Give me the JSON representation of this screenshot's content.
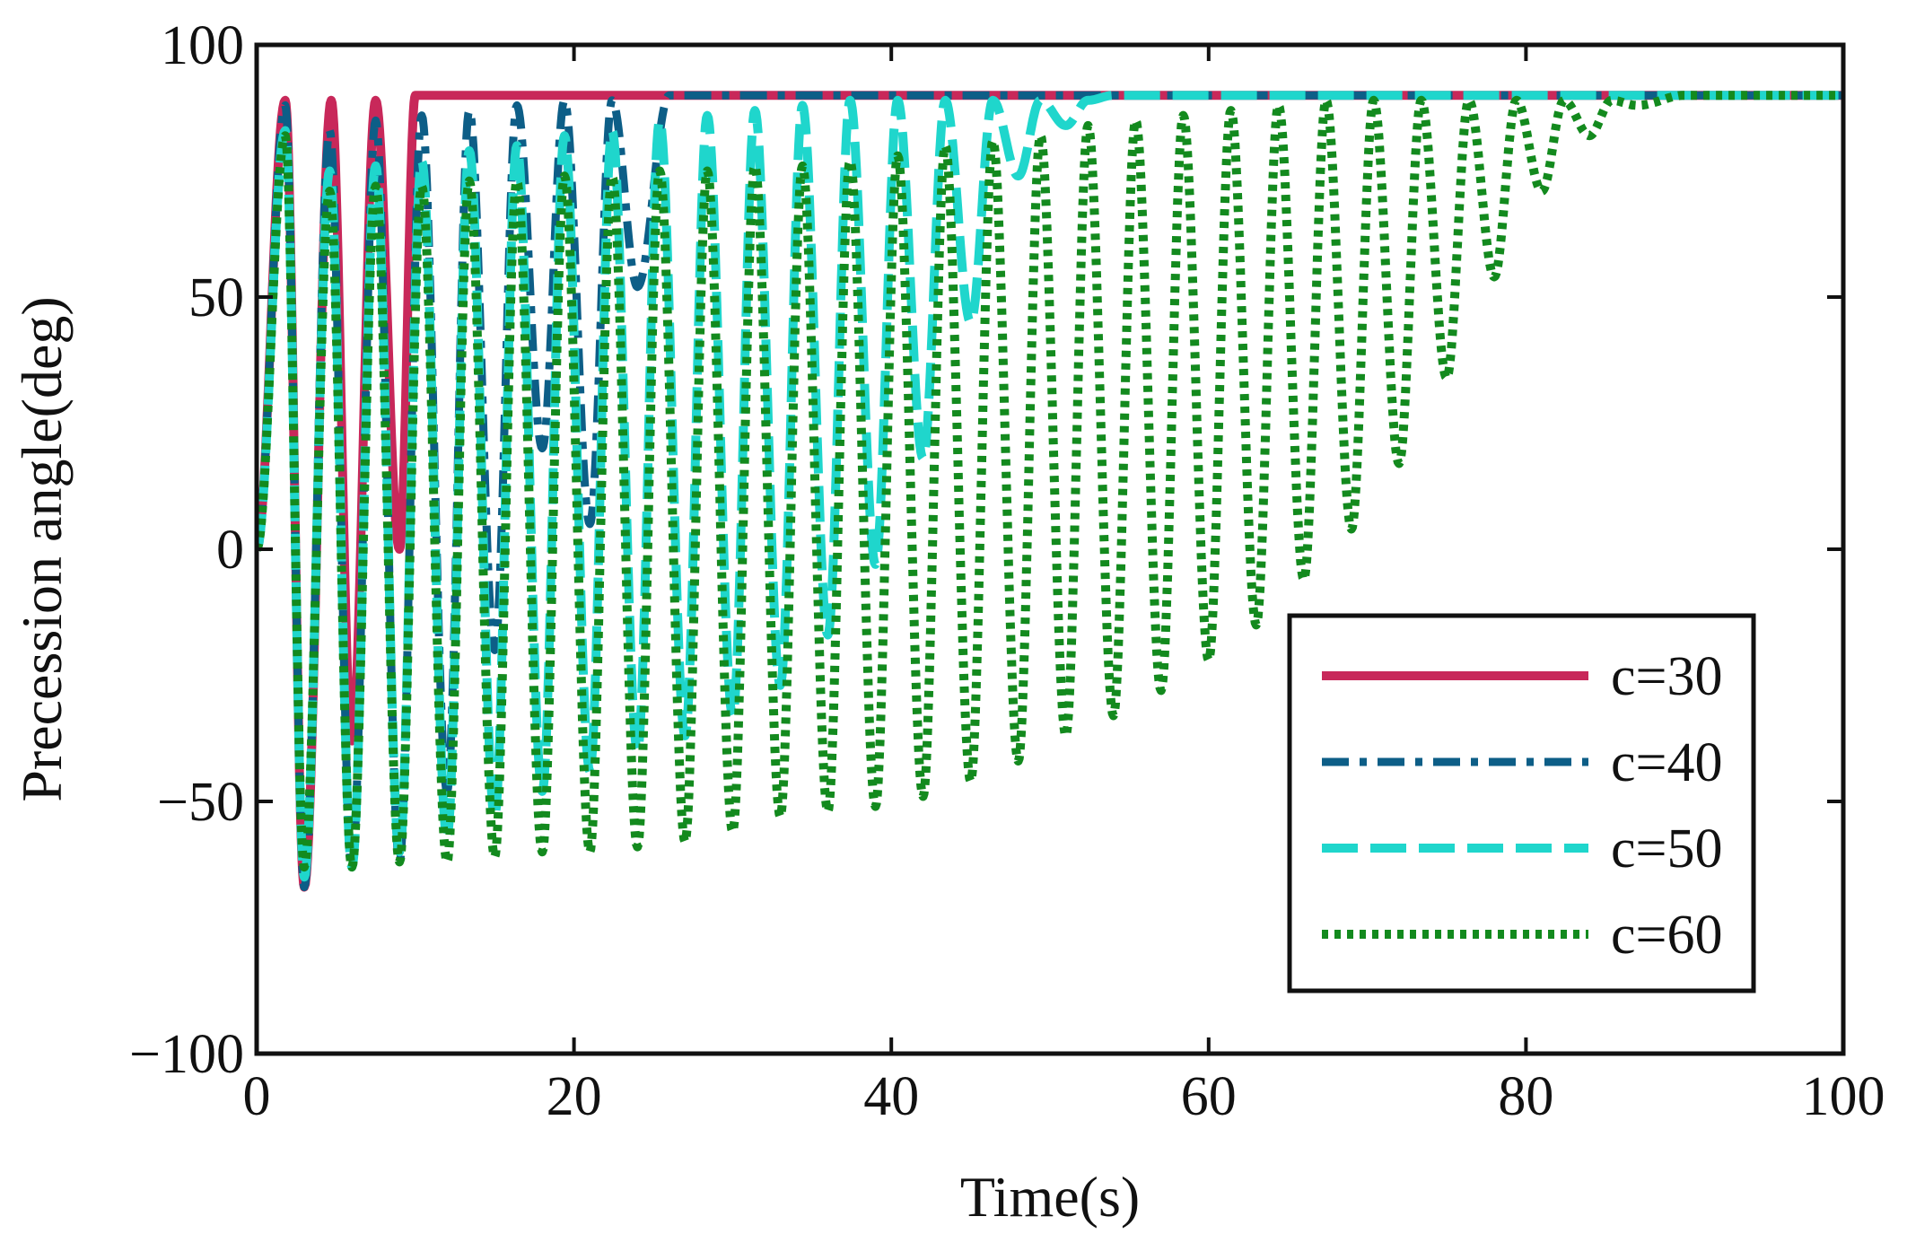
{
  "chart_data": {
    "type": "line",
    "title": "",
    "xlabel": "Time(s)",
    "ylabel": "Precession angle(deg)",
    "xlim": [
      0,
      100
    ],
    "ylim": [
      -100,
      100
    ],
    "xticks": [
      0,
      20,
      40,
      60,
      80,
      100
    ],
    "yticks": [
      -100,
      -50,
      0,
      50,
      100
    ],
    "ytick_labels": [
      "−100",
      "−50",
      "0",
      "50",
      "100"
    ],
    "grid": false,
    "legend_position": "lower-right",
    "series": [
      {
        "name": "c=30",
        "color": "#c8285a",
        "style": "solid",
        "steady_value": 90,
        "settle_time": 10,
        "minima": [
          [
            3.0,
            -67
          ],
          [
            6.0,
            -38
          ],
          [
            9.0,
            0
          ]
        ],
        "maxima": [
          [
            1.8,
            89
          ],
          [
            4.7,
            89
          ],
          [
            7.5,
            89
          ]
        ]
      },
      {
        "name": "c=40",
        "color": "#0d5e87",
        "style": "dashdot",
        "steady_value": 90,
        "settle_time": 26,
        "minima": [
          [
            3.0,
            -67
          ],
          [
            6.0,
            -63
          ],
          [
            9.0,
            -62
          ],
          [
            12.0,
            -48
          ],
          [
            15.0,
            -20
          ],
          [
            18.0,
            20
          ],
          [
            21.0,
            5
          ],
          [
            24.0,
            52
          ]
        ],
        "maxima": [
          [
            1.8,
            88
          ],
          [
            4.6,
            83
          ],
          [
            7.5,
            85
          ],
          [
            10.4,
            86
          ],
          [
            13.4,
            87
          ],
          [
            16.4,
            88
          ],
          [
            19.4,
            89
          ],
          [
            22.4,
            89
          ]
        ]
      },
      {
        "name": "c=50",
        "color": "#1fd6cc",
        "style": "longdash",
        "steady_value": 90,
        "settle_time": 54,
        "minima": [
          [
            3.0,
            -65
          ],
          [
            6.0,
            -63
          ],
          [
            9.0,
            -60
          ],
          [
            12.0,
            -57
          ],
          [
            15.0,
            -53
          ],
          [
            18.0,
            -48
          ],
          [
            21.0,
            -44
          ],
          [
            24.0,
            -40
          ],
          [
            27.0,
            -37
          ],
          [
            30.0,
            -33
          ],
          [
            33.0,
            -27
          ],
          [
            36.0,
            -17
          ],
          [
            39.0,
            -3
          ],
          [
            42.0,
            18
          ],
          [
            45.0,
            45
          ],
          [
            48.0,
            74
          ],
          [
            51.0,
            84
          ]
        ],
        "maxima": [
          [
            1.8,
            83
          ],
          [
            4.6,
            75
          ],
          [
            7.5,
            76
          ],
          [
            10.4,
            77
          ],
          [
            13.4,
            79
          ],
          [
            16.4,
            80
          ],
          [
            19.4,
            82
          ],
          [
            22.4,
            83
          ],
          [
            25.4,
            85
          ],
          [
            28.4,
            86
          ],
          [
            31.4,
            87
          ],
          [
            34.4,
            88
          ],
          [
            37.4,
            89
          ],
          [
            40.4,
            89
          ],
          [
            43.4,
            89
          ],
          [
            46.4,
            89
          ],
          [
            49.4,
            89
          ],
          [
            52.4,
            89
          ]
        ]
      },
      {
        "name": "c=60",
        "color": "#138a1e",
        "style": "dotted",
        "steady_value": 90,
        "settle_time": 90,
        "minima": [
          [
            3.0,
            -63
          ],
          [
            6.0,
            -63
          ],
          [
            9.0,
            -62
          ],
          [
            12.0,
            -62
          ],
          [
            15.0,
            -61
          ],
          [
            18.0,
            -60
          ],
          [
            21.0,
            -60
          ],
          [
            24.0,
            -59
          ],
          [
            27.0,
            -58
          ],
          [
            30.0,
            -56
          ],
          [
            33.0,
            -53
          ],
          [
            36.0,
            -52
          ],
          [
            39.0,
            -51
          ],
          [
            42.0,
            -49
          ],
          [
            45.0,
            -46
          ],
          [
            48.0,
            -42
          ],
          [
            51.0,
            -37
          ],
          [
            54.0,
            -33
          ],
          [
            57.0,
            -28
          ],
          [
            60.0,
            -22
          ],
          [
            63.0,
            -15
          ],
          [
            66.0,
            -6
          ],
          [
            69.0,
            4
          ],
          [
            72.0,
            17
          ],
          [
            75.0,
            34
          ],
          [
            78.0,
            54
          ],
          [
            81.0,
            71
          ],
          [
            84.0,
            82
          ],
          [
            87.0,
            88
          ]
        ],
        "maxima": [
          [
            1.8,
            82
          ],
          [
            4.6,
            71
          ],
          [
            7.5,
            72
          ],
          [
            10.4,
            72
          ],
          [
            13.4,
            73
          ],
          [
            16.4,
            73
          ],
          [
            19.4,
            74
          ],
          [
            22.4,
            74
          ],
          [
            25.4,
            75
          ],
          [
            28.4,
            75
          ],
          [
            31.4,
            76
          ],
          [
            34.4,
            76
          ],
          [
            37.4,
            77
          ],
          [
            40.4,
            78
          ],
          [
            43.4,
            80
          ],
          [
            46.4,
            81
          ],
          [
            49.4,
            82
          ],
          [
            52.4,
            84
          ],
          [
            55.4,
            85
          ],
          [
            58.4,
            86
          ],
          [
            61.4,
            87
          ],
          [
            64.4,
            88
          ],
          [
            67.4,
            89
          ],
          [
            70.4,
            89
          ],
          [
            73.4,
            89
          ],
          [
            76.4,
            89
          ],
          [
            79.4,
            89
          ],
          [
            82.4,
            89
          ],
          [
            85.4,
            89
          ]
        ]
      }
    ]
  }
}
